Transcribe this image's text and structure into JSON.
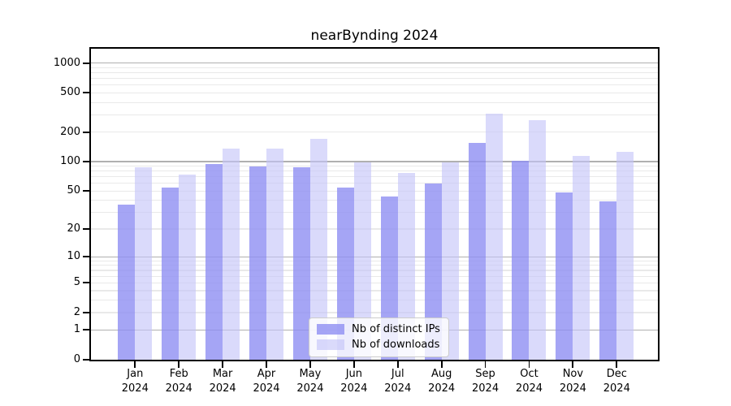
{
  "title": "nearBynding 2024",
  "chart_data": {
    "type": "bar",
    "title": "nearBynding 2024",
    "categories": [
      "Jan",
      "Feb",
      "Mar",
      "Apr",
      "May",
      "Jun",
      "Jul",
      "Aug",
      "Sep",
      "Oct",
      "Nov",
      "Dec"
    ],
    "year_label": "2024",
    "series": [
      {
        "name": "Nb of distinct IPs",
        "color": "rgba(143, 143, 242, 0.8)",
        "values": [
          36,
          54,
          94,
          90,
          88,
          54,
          44,
          60,
          156,
          102,
          48,
          39
        ]
      },
      {
        "name": "Nb of downloads",
        "color": "rgba(196, 196, 248, 0.62)",
        "values": [
          88,
          73,
          135,
          136,
          170,
          99,
          76,
          99,
          305,
          265,
          115,
          127
        ]
      }
    ],
    "yscale": "log10(value+1)",
    "yticks": [
      0,
      1,
      2,
      5,
      10,
      20,
      50,
      100,
      200,
      500,
      1000
    ],
    "ylim": [
      0,
      1400
    ],
    "xlabel": "",
    "ylabel": "",
    "grid": {
      "major": [
        1,
        10,
        100,
        1000
      ],
      "minor": [
        2,
        3,
        4,
        5,
        6,
        7,
        8,
        9,
        20,
        30,
        40,
        50,
        60,
        70,
        80,
        90,
        200,
        300,
        400,
        500,
        600,
        700,
        800,
        900
      ],
      "major_color": "#b0b0b0",
      "minor_color": "#e9e9e9"
    },
    "legend": {
      "position": "lower center",
      "items": [
        "Nb of distinct IPs",
        "Nb of downloads"
      ]
    }
  },
  "colors": {
    "axis": "#000000",
    "background": "#ffffff"
  }
}
